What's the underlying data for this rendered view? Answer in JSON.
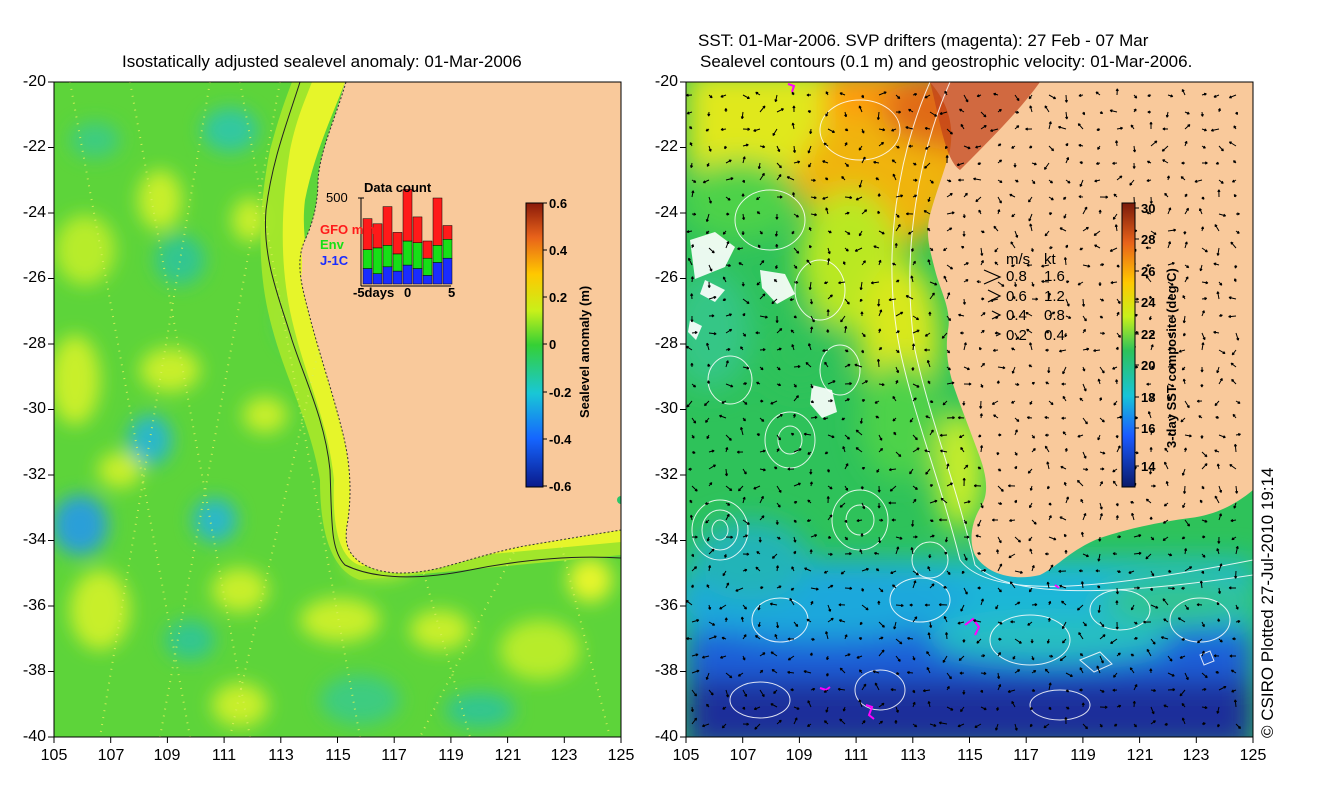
{
  "left_panel": {
    "title": "Isostatically adjusted sealevel anomaly: 01-Mar-2006",
    "colorbar": {
      "label": "Sealevel anomaly (m)",
      "ticks": [
        "0.6",
        "0.4",
        "0.2",
        "0",
        "-0.2",
        "-0.4",
        "-0.6"
      ]
    },
    "inset": {
      "title": "Data count",
      "ymax": "500",
      "x_labels": [
        "-5days",
        "0",
        "5"
      ],
      "legend": [
        {
          "label": "GFO mm",
          "color": "#ff1a1a"
        },
        {
          "label": "Env",
          "color": "#16e016"
        },
        {
          "label": "J-1C",
          "color": "#1a2cff"
        }
      ],
      "bars": [
        {
          "j1c": 0.18,
          "env": 0.22,
          "gfo": 0.36
        },
        {
          "j1c": 0.12,
          "env": 0.3,
          "gfo": 0.28
        },
        {
          "j1c": 0.2,
          "env": 0.25,
          "gfo": 0.45
        },
        {
          "j1c": 0.15,
          "env": 0.2,
          "gfo": 0.25
        },
        {
          "j1c": 0.22,
          "env": 0.28,
          "gfo": 0.6
        },
        {
          "j1c": 0.18,
          "env": 0.3,
          "gfo": 0.3
        },
        {
          "j1c": 0.1,
          "env": 0.2,
          "gfo": 0.2
        },
        {
          "j1c": 0.25,
          "env": 0.2,
          "gfo": 0.55
        },
        {
          "j1c": 0.3,
          "env": 0.22,
          "gfo": 0.16
        }
      ]
    }
  },
  "right_panel": {
    "title_line1": "SST: 01-Mar-2006. SVP drifters (magenta): 27 Feb - 07 Mar",
    "title_line2": "Sealevel contours (0.1 m) and geostrophic velocity: 01-Mar-2006.",
    "colorbar": {
      "label": "3-day SST composite (deg C)",
      "ticks": [
        "30",
        "28",
        "26",
        "24",
        "22",
        "20",
        "18",
        "16",
        "14"
      ]
    },
    "velocity_legend": {
      "header_ms": "m/s",
      "header_kt": "kt",
      "rows": [
        {
          "ms": "0.8",
          "kt": "1.6"
        },
        {
          "ms": "0.6",
          "kt": "1.2"
        },
        {
          "ms": "0.4",
          "kt": "0.8"
        },
        {
          "ms": "0.2",
          "kt": "0.4"
        }
      ]
    }
  },
  "axes": {
    "y_ticks": [
      "-20",
      "-22",
      "-24",
      "-26",
      "-28",
      "-30",
      "-32",
      "-34",
      "-36",
      "-38",
      "-40"
    ],
    "x_ticks": [
      "105",
      "107",
      "109",
      "111",
      "113",
      "115",
      "117",
      "119",
      "121",
      "123",
      "125"
    ]
  },
  "copyright": "© CSIRO Plotted 27-Jul-2010 19:14",
  "colors": {
    "land": "#f9c99b",
    "sla_base": "#5dd43a",
    "sst_base": "#2ec25a"
  }
}
